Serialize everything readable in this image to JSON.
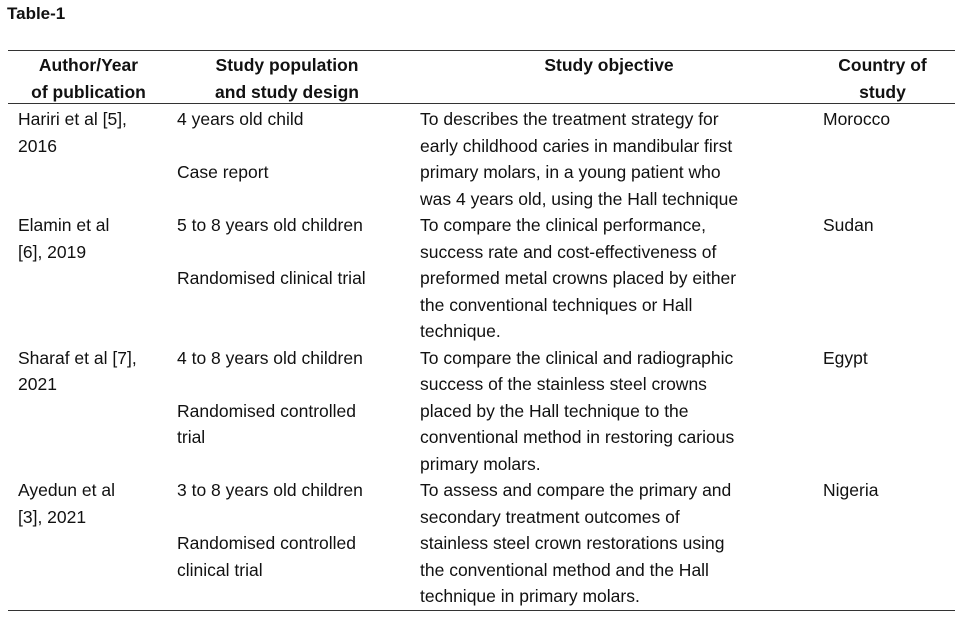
{
  "title": "Table-1",
  "table": {
    "header": [
      [
        "Author/Year",
        "of publication"
      ],
      [
        "Study population",
        "and study design"
      ],
      [
        "Study objective"
      ],
      [
        "Country of",
        "study"
      ]
    ],
    "rows": [
      [
        [
          "Hariri et al [5],",
          "2016"
        ],
        [
          [
            "4 years old child"
          ],
          [
            "Case report"
          ]
        ],
        [
          "To describes the treatment strategy for",
          "early childhood caries in mandibular first",
          "primary molars, in a young patient who",
          "was 4 years old, using the Hall technique"
        ],
        [
          "Morocco"
        ]
      ],
      [
        [
          "Elamin et al",
          "[6], 2019"
        ],
        [
          [
            "5 to 8 years old children"
          ],
          [
            "Randomised clinical trial"
          ]
        ],
        [
          "To compare the clinical performance,",
          "success rate and cost-effectiveness of",
          "preformed metal crowns placed by either",
          "the conventional techniques or Hall",
          "technique."
        ],
        [
          "Sudan"
        ]
      ],
      [
        [
          "Sharaf et al [7],",
          "2021"
        ],
        [
          [
            "4 to 8 years old children"
          ],
          [
            "Randomised controlled",
            "trial"
          ]
        ],
        [
          "To compare the clinical and radiographic",
          "success of the stainless steel crowns",
          "placed by the Hall technique to the",
          "conventional method in restoring carious",
          "primary molars."
        ],
        [
          "Egypt"
        ]
      ],
      [
        [
          "Ayedun et al",
          "[3], 2021"
        ],
        [
          [
            "3 to 8 years old children"
          ],
          [
            "Randomised controlled",
            "clinical trial"
          ]
        ],
        [
          "To assess and compare the primary and",
          "secondary treatment outcomes of",
          "stainless steel crown restorations using",
          "the conventional method and the Hall",
          "technique in primary molars."
        ],
        [
          "Nigeria"
        ]
      ]
    ]
  }
}
